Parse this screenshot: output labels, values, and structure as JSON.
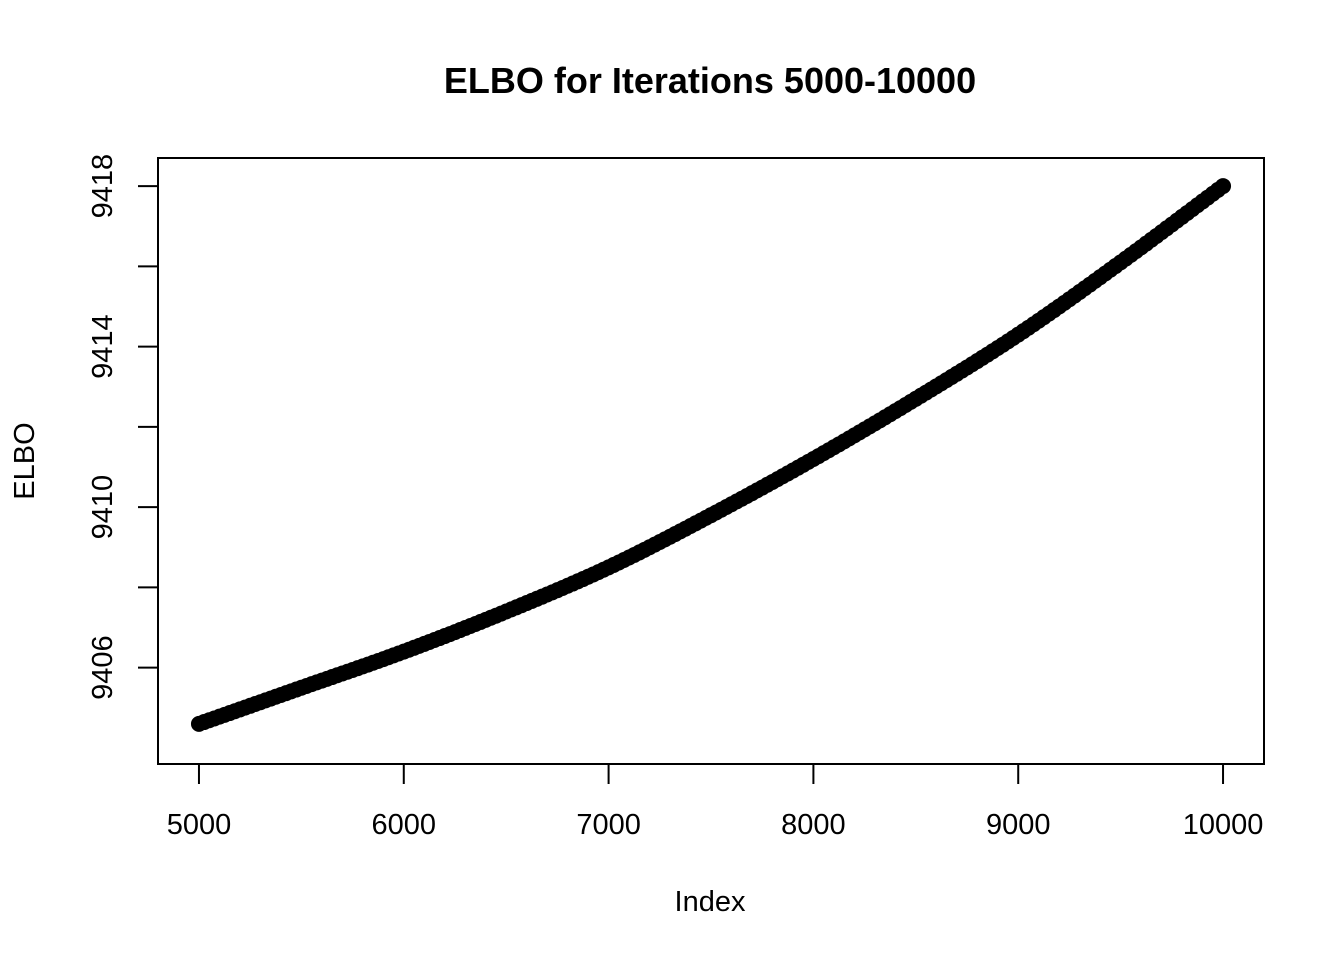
{
  "chart_data": {
    "type": "scatter",
    "title": "ELBO for Iterations 5000-10000",
    "xlabel": "Index",
    "ylabel": "ELBO",
    "xlim": [
      4800,
      10200
    ],
    "ylim": [
      9403.6,
      9418.7
    ],
    "x_ticks": [
      5000,
      6000,
      7000,
      8000,
      9000,
      10000
    ],
    "x_tick_labels": [
      "5000",
      "6000",
      "7000",
      "8000",
      "9000",
      "10000"
    ],
    "y_ticks": [
      9406,
      9408,
      9410,
      9412,
      9414,
      9416,
      9418
    ],
    "y_tick_labels": [
      "9406",
      "",
      "9410",
      "",
      "9414",
      "",
      "9418"
    ],
    "grid": false,
    "legend": "none",
    "marker_color": "#000000",
    "series": [
      {
        "x": [
          5000,
          5500,
          6000,
          6500,
          7000,
          7500,
          8000,
          8500,
          9000,
          9500,
          10000
        ],
        "values": [
          9404.6,
          9405.5,
          9406.4,
          9407.4,
          9408.5,
          9409.8,
          9411.2,
          9412.7,
          9414.3,
          9416.1,
          9418.0
        ]
      }
    ]
  }
}
